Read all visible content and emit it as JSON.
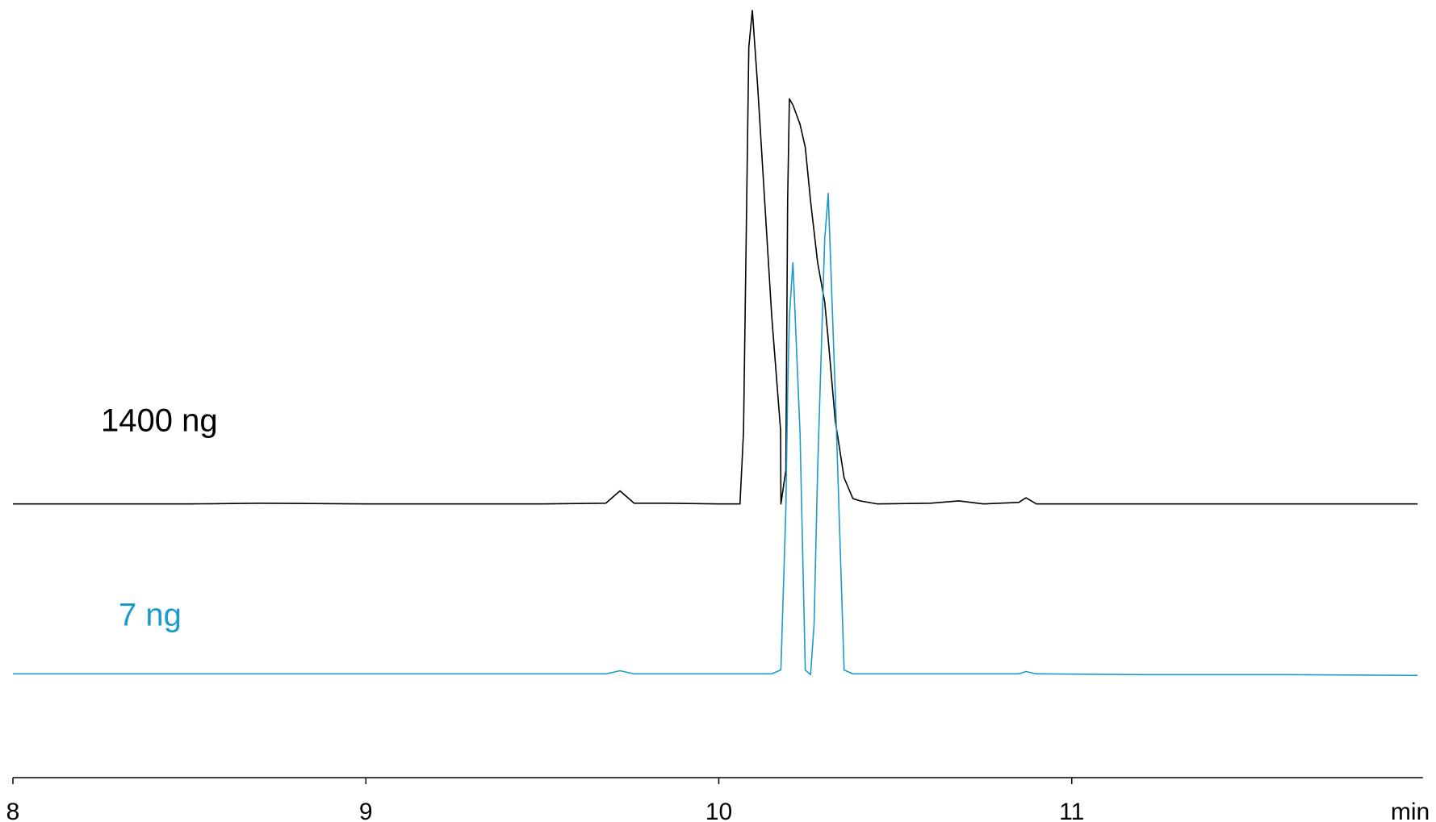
{
  "chart_data": {
    "type": "line",
    "x_label": "min",
    "x": [
      8.0,
      8.5,
      8.7,
      9.0,
      9.5,
      9.68,
      9.72,
      9.76,
      9.85,
      10.0,
      10.06,
      10.07,
      10.085,
      10.095,
      10.11,
      10.13,
      10.15,
      10.175,
      10.176,
      10.19,
      10.195,
      10.2,
      10.21,
      10.23,
      10.245,
      10.26,
      10.27,
      10.28,
      10.3,
      10.31,
      10.33,
      10.355,
      10.38,
      10.4,
      10.45,
      10.6,
      10.68,
      10.75,
      10.85,
      10.87,
      10.9,
      11.2,
      11.6,
      11.98
    ],
    "series": [
      {
        "name": "1400 ng",
        "color": "#000000",
        "values": [
          35.6,
          35.6,
          35.7,
          35.6,
          35.6,
          35.7,
          37.3,
          35.7,
          35.7,
          35.6,
          35.6,
          45,
          95,
          99.8,
          90,
          75,
          60,
          45.2,
          35.6,
          40,
          75,
          88.3,
          87.5,
          85,
          82,
          75,
          71,
          67,
          61.9,
          57,
          46.4,
          39,
          36.3,
          36,
          35.6,
          35.7,
          36,
          35.6,
          35.8,
          36.4,
          35.6,
          35.6,
          35.6,
          35.6
        ]
      },
      {
        "name": "7 ng",
        "color": "#1a9bc9",
        "values": [
          13.5,
          13.5,
          13.5,
          13.5,
          13.5,
          13.5,
          13.9,
          13.5,
          13.5,
          13.5,
          13.5,
          13.5,
          13.5,
          13.5,
          13.5,
          13.5,
          13.5,
          14,
          14.2,
          35,
          50,
          60,
          67,
          45,
          14,
          13.4,
          20,
          40,
          70,
          76,
          50,
          14,
          13.5,
          13.5,
          13.5,
          13.5,
          13.5,
          13.5,
          13.5,
          13.8,
          13.5,
          13.4,
          13.4,
          13.3
        ]
      }
    ],
    "xlim": [
      8,
      12
    ],
    "xticks": [
      8,
      9,
      10,
      11
    ],
    "ylim": [
      0,
      100
    ]
  }
}
